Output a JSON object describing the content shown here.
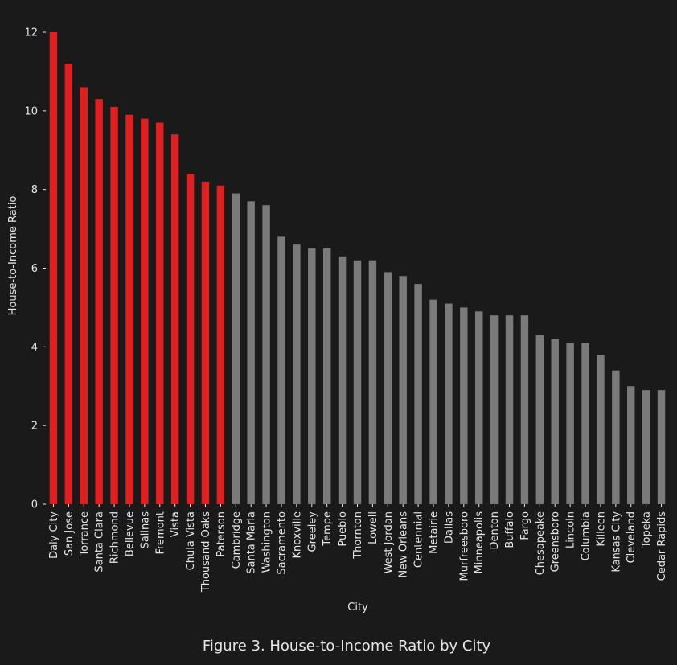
{
  "chart_data": {
    "type": "bar",
    "title": "",
    "xlabel": "City",
    "ylabel": "House-to-Income Ratio",
    "caption": "Figure 3. House-to-Income Ratio by City",
    "ylim": [
      0,
      12
    ],
    "yticks": [
      0,
      2,
      4,
      6,
      8,
      10,
      12
    ],
    "grid": false,
    "legend": "none",
    "categories": [
      "Daly City",
      "San Jose",
      "Torrance",
      "Santa Clara",
      "Richmond",
      "Bellevue",
      "Salinas",
      "Fremont",
      "Vista",
      "Chula Vista",
      "Thousand Oaks",
      "Paterson",
      "Cambridge",
      "Santa Maria",
      "Washington",
      "Sacramento",
      "Knoxville",
      "Greeley",
      "Tempe",
      "Pueblo",
      "Thornton",
      "Lowell",
      "West Jordan",
      "New Orleans",
      "Centennial",
      "Metairie",
      "Dallas",
      "Murfreesboro",
      "Minneapolis",
      "Denton",
      "Buffalo",
      "Fargo",
      "Chesapeake",
      "Greensboro",
      "Lincoln",
      "Columbia",
      "Killeen",
      "Kansas City",
      "Cleveland",
      "Topeka",
      "Cedar Rapids"
    ],
    "values": [
      12.0,
      11.2,
      10.6,
      10.3,
      10.1,
      9.9,
      9.8,
      9.7,
      9.4,
      8.4,
      8.2,
      8.1,
      7.9,
      7.7,
      7.6,
      6.8,
      6.6,
      6.5,
      6.5,
      6.3,
      6.2,
      6.2,
      5.9,
      5.8,
      5.6,
      5.2,
      5.1,
      5.0,
      4.9,
      4.8,
      4.8,
      4.8,
      4.3,
      4.2,
      4.1,
      4.1,
      3.8,
      3.4,
      3.0,
      2.9,
      2.9
    ],
    "highlight_count": 12,
    "colors": {
      "background": "#1a1a1a",
      "highlight": "#e02020",
      "default": "#7a7a7a",
      "text": "#e6e6e6"
    }
  }
}
